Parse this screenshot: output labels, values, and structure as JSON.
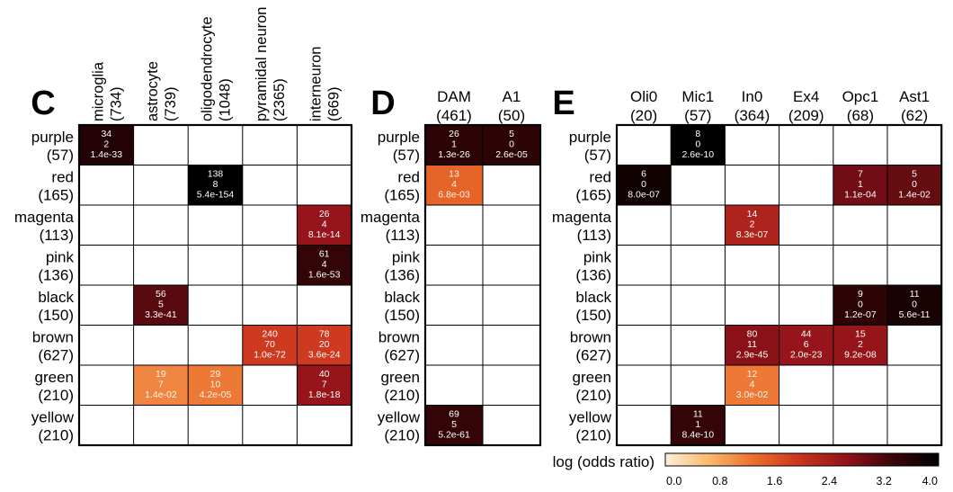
{
  "colorbar": {
    "label": "log (odds ratio)",
    "ticks": [
      "0.0",
      "0.8",
      "1.6",
      "2.4",
      "3.2",
      "4.0"
    ],
    "min": 0,
    "max": 4,
    "stops": [
      "#fdf0d8",
      "#f7b668",
      "#ea6a2a",
      "#c8321e",
      "#8f121a",
      "#3a0508",
      "#000000"
    ]
  },
  "chart_data": [
    {
      "type": "heatmap",
      "panel": "C",
      "rows": [
        {
          "name": "purple",
          "count": "(57)"
        },
        {
          "name": "red",
          "count": "(165)"
        },
        {
          "name": "magenta",
          "count": "(113)"
        },
        {
          "name": "pink",
          "count": "(136)"
        },
        {
          "name": "black",
          "count": "(150)"
        },
        {
          "name": "brown",
          "count": "(627)"
        },
        {
          "name": "green",
          "count": "(210)"
        },
        {
          "name": "yellow",
          "count": "(210)"
        }
      ],
      "columns": [
        {
          "name": "microglia",
          "count": "(734)"
        },
        {
          "name": "astrocyte",
          "count": "(739)"
        },
        {
          "name": "oligodendrocyte",
          "count": "(1048)"
        },
        {
          "name": "pyramidal neuron",
          "count": "(2365)"
        },
        {
          "name": "interneuron",
          "count": "(669)"
        }
      ],
      "cells": [
        {
          "row": 0,
          "col": 0,
          "overlap": "34",
          "expected": "2",
          "p": "1.4e-33",
          "log_or": 3.6
        },
        {
          "row": 1,
          "col": 2,
          "overlap": "138",
          "expected": "8",
          "p": "5.4e-154",
          "log_or": 4.0
        },
        {
          "row": 2,
          "col": 4,
          "overlap": "26",
          "expected": "4",
          "p": "8.1e-14",
          "log_or": 2.6
        },
        {
          "row": 3,
          "col": 4,
          "overlap": "61",
          "expected": "4",
          "p": "1.6e-53",
          "log_or": 3.4
        },
        {
          "row": 4,
          "col": 1,
          "overlap": "56",
          "expected": "5",
          "p": "3.3e-41",
          "log_or": 3.1
        },
        {
          "row": 5,
          "col": 3,
          "overlap": "240",
          "expected": "70",
          "p": "1.0e-72",
          "log_or": 1.9
        },
        {
          "row": 5,
          "col": 4,
          "overlap": "78",
          "expected": "20",
          "p": "3.6e-24",
          "log_or": 1.9
        },
        {
          "row": 6,
          "col": 1,
          "overlap": "19",
          "expected": "7",
          "p": "1.4e-02",
          "log_or": 1.1
        },
        {
          "row": 6,
          "col": 2,
          "overlap": "29",
          "expected": "10",
          "p": "4.2e-05",
          "log_or": 1.2
        },
        {
          "row": 6,
          "col": 4,
          "overlap": "40",
          "expected": "7",
          "p": "1.8e-18",
          "log_or": 2.6
        }
      ]
    },
    {
      "type": "heatmap",
      "panel": "D",
      "rows": [
        {
          "name": "purple",
          "count": "(57)"
        },
        {
          "name": "red",
          "count": "(165)"
        },
        {
          "name": "magenta",
          "count": "(113)"
        },
        {
          "name": "pink",
          "count": "(136)"
        },
        {
          "name": "black",
          "count": "(150)"
        },
        {
          "name": "brown",
          "count": "(627)"
        },
        {
          "name": "green",
          "count": "(210)"
        },
        {
          "name": "yellow",
          "count": "(210)"
        }
      ],
      "columns": [
        {
          "name": "DAM",
          "count": "(461)"
        },
        {
          "name": "A1",
          "count": "(50)"
        }
      ],
      "cells": [
        {
          "row": 0,
          "col": 0,
          "overlap": "26",
          "expected": "1",
          "p": "1.3e-26",
          "log_or": 3.5
        },
        {
          "row": 0,
          "col": 1,
          "overlap": "5",
          "expected": "0",
          "p": "2.6e-05",
          "log_or": 3.5
        },
        {
          "row": 1,
          "col": 0,
          "overlap": "13",
          "expected": "4",
          "p": "6.8e-03",
          "log_or": 1.4
        },
        {
          "row": 7,
          "col": 0,
          "overlap": "69",
          "expected": "5",
          "p": "5.2e-61",
          "log_or": 3.4
        }
      ]
    },
    {
      "type": "heatmap",
      "panel": "E",
      "rows": [
        {
          "name": "purple",
          "count": "(57)"
        },
        {
          "name": "red",
          "count": "(165)"
        },
        {
          "name": "magenta",
          "count": "(113)"
        },
        {
          "name": "pink",
          "count": "(136)"
        },
        {
          "name": "black",
          "count": "(150)"
        },
        {
          "name": "brown",
          "count": "(627)"
        },
        {
          "name": "green",
          "count": "(210)"
        },
        {
          "name": "yellow",
          "count": "(210)"
        }
      ],
      "columns": [
        {
          "name": "Oli0",
          "count": "(20)"
        },
        {
          "name": "Mic1",
          "count": "(57)"
        },
        {
          "name": "In0",
          "count": "(364)"
        },
        {
          "name": "Ex4",
          "count": "(209)"
        },
        {
          "name": "Opc1",
          "count": "(68)"
        },
        {
          "name": "Ast1",
          "count": "(62)"
        }
      ],
      "cells": [
        {
          "row": 0,
          "col": 1,
          "overlap": "8",
          "expected": "0",
          "p": "2.6e-10",
          "log_or": 4.0
        },
        {
          "row": 1,
          "col": 0,
          "overlap": "6",
          "expected": "0",
          "p": "8.0e-07",
          "log_or": 3.8
        },
        {
          "row": 1,
          "col": 4,
          "overlap": "7",
          "expected": "1",
          "p": "1.1e-04",
          "log_or": 2.9
        },
        {
          "row": 1,
          "col": 5,
          "overlap": "5",
          "expected": "0",
          "p": "1.4e-02",
          "log_or": 3.0
        },
        {
          "row": 2,
          "col": 2,
          "overlap": "14",
          "expected": "2",
          "p": "8.3e-07",
          "log_or": 2.3
        },
        {
          "row": 4,
          "col": 4,
          "overlap": "9",
          "expected": "0",
          "p": "1.2e-07",
          "log_or": 3.5
        },
        {
          "row": 4,
          "col": 5,
          "overlap": "11",
          "expected": "0",
          "p": "5.6e-11",
          "log_or": 3.7
        },
        {
          "row": 5,
          "col": 2,
          "overlap": "80",
          "expected": "11",
          "p": "2.9e-45",
          "log_or": 2.7
        },
        {
          "row": 5,
          "col": 3,
          "overlap": "44",
          "expected": "6",
          "p": "2.0e-23",
          "log_or": 2.6
        },
        {
          "row": 5,
          "col": 4,
          "overlap": "15",
          "expected": "2",
          "p": "9.2e-08",
          "log_or": 2.6
        },
        {
          "row": 6,
          "col": 2,
          "overlap": "12",
          "expected": "4",
          "p": "3.0e-02",
          "log_or": 1.2
        },
        {
          "row": 7,
          "col": 1,
          "overlap": "11",
          "expected": "1",
          "p": "8.4e-10",
          "log_or": 3.4
        }
      ]
    }
  ]
}
